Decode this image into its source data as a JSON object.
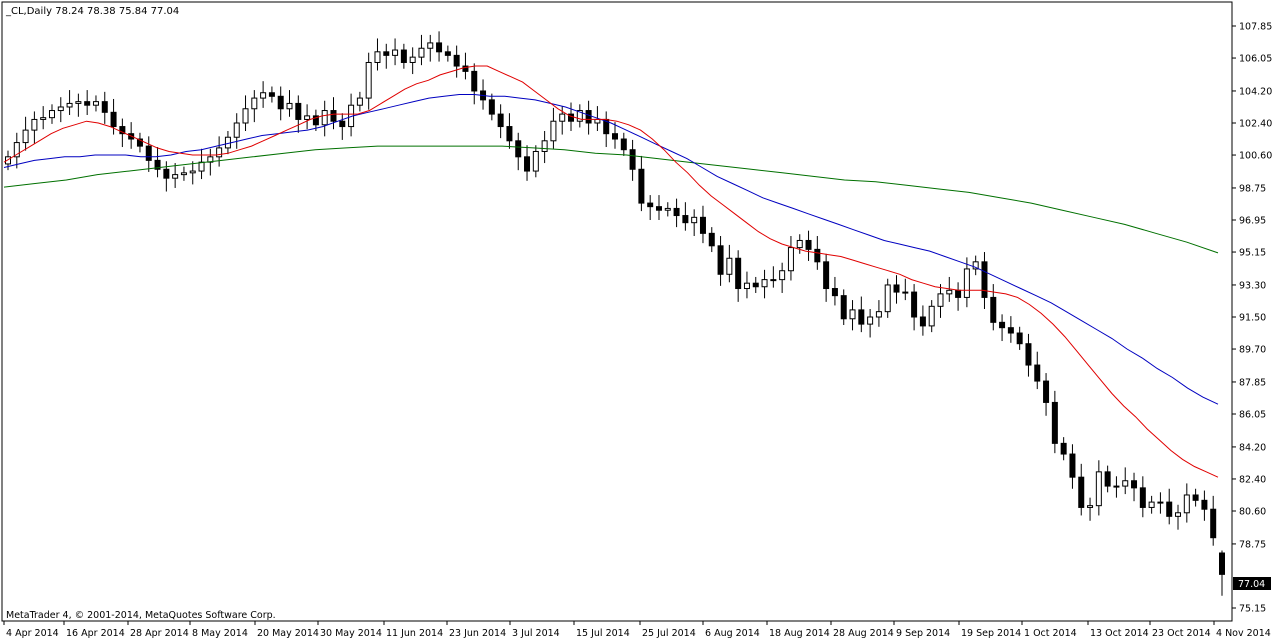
{
  "header": {
    "symbol_line": "_CL,Daily  78.24 78.38 75.84 77.04"
  },
  "footer": {
    "copyright": "MetaTrader 4, © 2001-2014, MetaQuotes Software Corp."
  },
  "colors": {
    "candle_up_fill": "#ffffff",
    "candle_down_fill": "#000000",
    "ma_fast": "#e00000",
    "ma_mid": "#0000c0",
    "ma_slow": "#007000",
    "current_price_bg": "#000000"
  },
  "chart_data": {
    "type": "candlestick",
    "title": "_CL,Daily",
    "ohlc_last": {
      "open": 78.24,
      "high": 78.38,
      "low": 75.84,
      "close": 77.04
    },
    "current_price_label": "77.04",
    "ylim": [
      75.15,
      108.0
    ],
    "y_ticks": [
      "107.85",
      "106.05",
      "104.20",
      "102.40",
      "100.60",
      "98.75",
      "96.95",
      "95.15",
      "93.30",
      "91.50",
      "89.70",
      "87.85",
      "86.05",
      "84.20",
      "82.40",
      "80.60",
      "78.75",
      "75.15"
    ],
    "x_tick_labels": [
      "4 Apr 2014",
      "16 Apr 2014",
      "28 Apr 2014",
      "8 May 2014",
      "20 May 2014",
      "30 May 2014",
      "11 Jun 2014",
      "23 Jun 2014",
      "3 Jul 2014",
      "15 Jul 2014",
      "25 Jul 2014",
      "6 Aug 2014",
      "18 Aug 2014",
      "28 Aug 2014",
      "9 Sep 2014",
      "19 Sep 2014",
      "1 Oct 2014",
      "13 Oct 2014",
      "23 Oct 2014",
      "4 Nov 2014"
    ],
    "closes": [
      100.5,
      101.3,
      102.0,
      102.6,
      102.7,
      103.1,
      103.3,
      103.5,
      103.6,
      103.4,
      103.6,
      103.0,
      102.2,
      101.8,
      101.5,
      101.1,
      100.3,
      99.8,
      99.3,
      99.5,
      99.6,
      99.7,
      100.2,
      100.5,
      101.0,
      101.6,
      102.4,
      103.2,
      103.8,
      104.1,
      103.9,
      103.2,
      103.5,
      102.6,
      102.8,
      102.3,
      103.1,
      102.5,
      102.2,
      103.4,
      103.8,
      105.8,
      106.4,
      106.2,
      106.5,
      105.8,
      106.1,
      106.6,
      106.9,
      106.4,
      106.2,
      105.6,
      105.3,
      104.2,
      103.7,
      102.9,
      102.2,
      101.4,
      100.5,
      99.7,
      100.8,
      101.4,
      102.5,
      102.9,
      102.5,
      103.1,
      102.4,
      102.6,
      101.8,
      101.5,
      100.9,
      99.8,
      97.9,
      97.7,
      97.5,
      97.6,
      97.2,
      96.8,
      97.1,
      96.2,
      95.5,
      93.9,
      94.8,
      93.1,
      93.4,
      93.2,
      93.6,
      93.6,
      94.1,
      95.4,
      95.8,
      95.3,
      94.6,
      93.1,
      92.7,
      91.4,
      91.9,
      91.1,
      91.5,
      91.8,
      93.3,
      92.9,
      92.9,
      91.5,
      91.0,
      92.1,
      92.8,
      93.0,
      92.6,
      94.2,
      94.6,
      92.6,
      91.2,
      90.9,
      90.6,
      90.0,
      88.8,
      87.9,
      86.7,
      84.4,
      83.8,
      82.5,
      80.8,
      80.9,
      82.8,
      82.0,
      82.0,
      82.3,
      81.9,
      80.8,
      81.1,
      81.1,
      80.3,
      80.5,
      81.5,
      81.2,
      80.7,
      79.1,
      77.04
    ],
    "series": [
      {
        "name": "",
        "color": "#e00000",
        "values": [
          100.2,
          100.6,
          101.0,
          101.4,
          101.8,
          102.1,
          102.3,
          102.5,
          102.4,
          102.2,
          101.9,
          101.6,
          101.3,
          101.0,
          100.8,
          100.7,
          100.6,
          100.6,
          100.6,
          100.7,
          100.9,
          101.1,
          101.4,
          101.7,
          102.0,
          102.3,
          102.6,
          102.8,
          102.9,
          102.9,
          102.9,
          103.1,
          103.5,
          103.9,
          104.3,
          104.6,
          104.8,
          105.1,
          105.3,
          105.5,
          105.6,
          105.6,
          105.3,
          105.0,
          104.7,
          104.2,
          103.7,
          103.2,
          102.8,
          102.6,
          102.6,
          102.6,
          102.5,
          102.3,
          102.0,
          101.5,
          100.9,
          100.2,
          99.6,
          98.9,
          98.3,
          97.8,
          97.3,
          96.8,
          96.3,
          95.9,
          95.6,
          95.4,
          95.2,
          95.1,
          95.0,
          94.9,
          94.7,
          94.5,
          94.3,
          94.1,
          93.9,
          93.6,
          93.4,
          93.2,
          93.1,
          93.0,
          93.0,
          93.0,
          92.9,
          92.8,
          92.6,
          92.2,
          91.7,
          91.1,
          90.4,
          89.6,
          88.8,
          88.0,
          87.2,
          86.5,
          85.9,
          85.2,
          84.6,
          84.0,
          83.5,
          83.1,
          82.8,
          82.5
        ]
      },
      {
        "name": "",
        "color": "#0000c0",
        "values": [
          99.9,
          100.1,
          100.3,
          100.4,
          100.5,
          100.5,
          100.6,
          100.6,
          100.6,
          100.5,
          100.5,
          100.6,
          100.8,
          100.9,
          101.1,
          101.3,
          101.5,
          101.7,
          101.8,
          101.9,
          102.0,
          102.2,
          102.5,
          102.8,
          103.0,
          103.2,
          103.4,
          103.6,
          103.8,
          103.9,
          104.0,
          104.0,
          103.9,
          103.9,
          103.8,
          103.7,
          103.5,
          103.3,
          103.0,
          102.7,
          102.4,
          102.0,
          101.6,
          101.2,
          100.8,
          100.4,
          99.9,
          99.4,
          99.0,
          98.6,
          98.2,
          97.9,
          97.6,
          97.3,
          97.0,
          96.7,
          96.4,
          96.1,
          95.8,
          95.6,
          95.4,
          95.2,
          94.9,
          94.6,
          94.3,
          93.9,
          93.5,
          93.1,
          92.7,
          92.3,
          91.8,
          91.3,
          90.8,
          90.3,
          89.7,
          89.2,
          88.6,
          88.1,
          87.5,
          87.0,
          86.6
        ]
      },
      {
        "name": "",
        "color": "#007000",
        "values": [
          98.8,
          99.0,
          99.2,
          99.5,
          99.7,
          99.9,
          100.1,
          100.3,
          100.5,
          100.7,
          100.9,
          101.0,
          101.1,
          101.1,
          101.1,
          101.1,
          101.1,
          101.0,
          100.9,
          100.7,
          100.6,
          100.4,
          100.2,
          100.0,
          99.8,
          99.6,
          99.4,
          99.2,
          99.1,
          98.9,
          98.7,
          98.5,
          98.2,
          97.9,
          97.5,
          97.1,
          96.7,
          96.2,
          95.7,
          95.1
        ]
      }
    ],
    "annotations": []
  }
}
